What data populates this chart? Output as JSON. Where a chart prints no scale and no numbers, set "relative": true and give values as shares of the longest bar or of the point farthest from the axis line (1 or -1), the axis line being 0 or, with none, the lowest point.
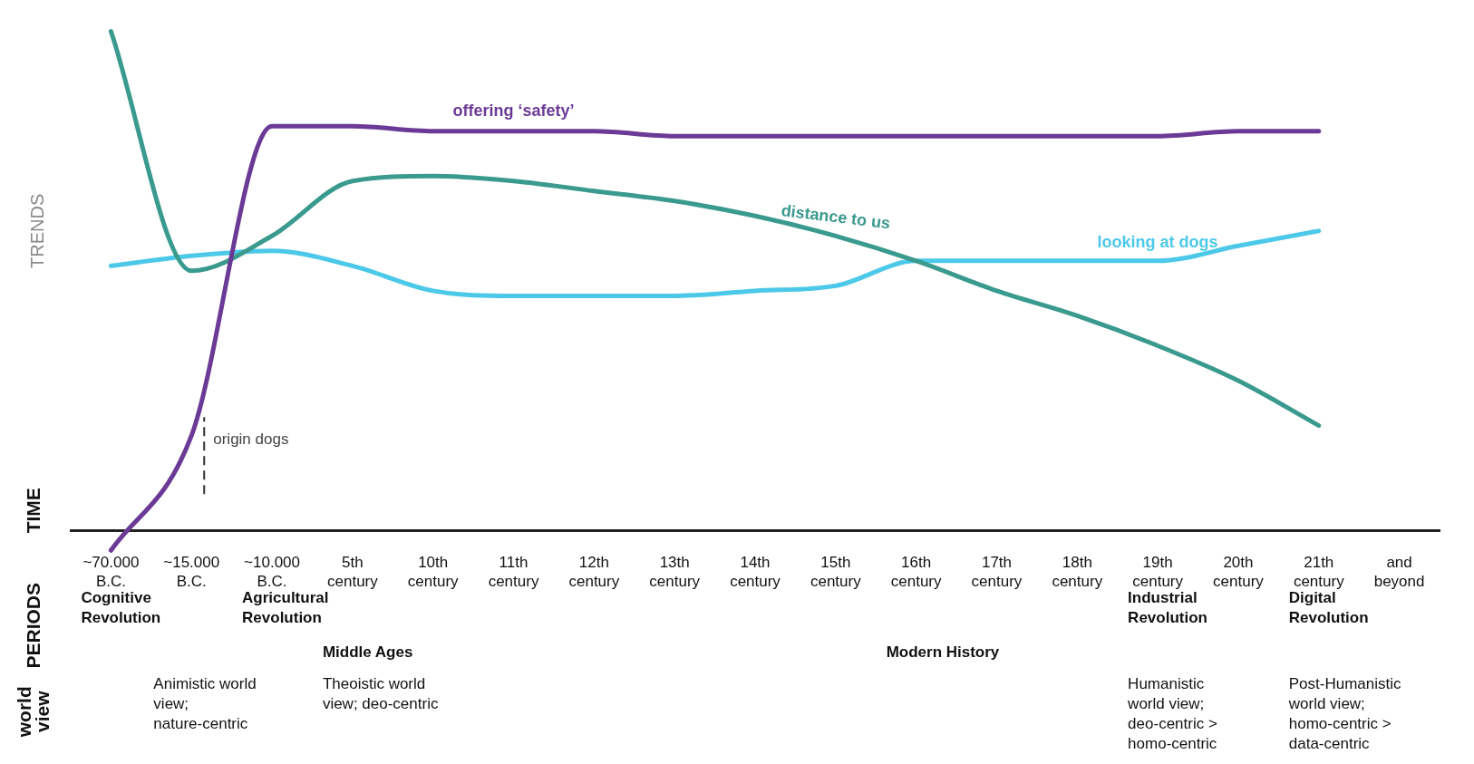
{
  "chart_data": {
    "type": "line",
    "relative": true,
    "ylabel": "TRENDS",
    "categories": [
      "~70.000 B.C.",
      "~15.000 B.C.",
      "~10.000 B.C.",
      "5th century",
      "10th century",
      "11th century",
      "12th century",
      "13th century",
      "14th century",
      "15th century",
      "16th century",
      "17th century",
      "18th century",
      "19th century",
      "20th century",
      "21th century",
      "and beyond"
    ],
    "series": [
      {
        "name": "offering ‘safety’",
        "color": "#6b3a96",
        "values": [
          -0.04,
          0.19,
          0.81,
          0.81,
          0.8,
          0.8,
          0.8,
          0.79,
          0.79,
          0.79,
          0.79,
          0.79,
          0.79,
          0.79,
          0.8,
          0.8,
          null
        ]
      },
      {
        "name": "distance to us",
        "color": "#3a9a8e",
        "values": [
          1,
          0.52,
          0.59,
          0.7,
          0.71,
          0.7,
          0.68,
          0.66,
          0.63,
          0.59,
          0.54,
          0.48,
          0.43,
          0.37,
          0.3,
          0.21,
          null
        ]
      },
      {
        "name": "looking at dogs",
        "color": "#4cc8e8",
        "values": [
          0.53,
          0.55,
          0.56,
          0.53,
          0.48,
          0.47,
          0.47,
          0.47,
          0.48,
          0.49,
          0.54,
          0.54,
          0.54,
          0.54,
          0.57,
          0.6,
          null
        ]
      }
    ],
    "ref_lines": [
      {
        "axis": "x",
        "value": "~15.000 B.C.",
        "label": "origin dogs",
        "line_style": "dashed",
        "color": "#333333"
      }
    ],
    "annotations": [
      "TIME",
      "Cognitive Revolution",
      "Agricultural Revolution",
      "Middle Ages",
      "Modern History",
      "Industrial Revolution",
      "Digital Revolution",
      "PERIODS",
      "Animistic world view; nature-centric",
      "Theoistic world view; deo-centric",
      "Humanistic world view; deo-centric > homo-centric",
      "Post-Humanistic world view; homo-centric > data-centric",
      "world view"
    ]
  }
}
